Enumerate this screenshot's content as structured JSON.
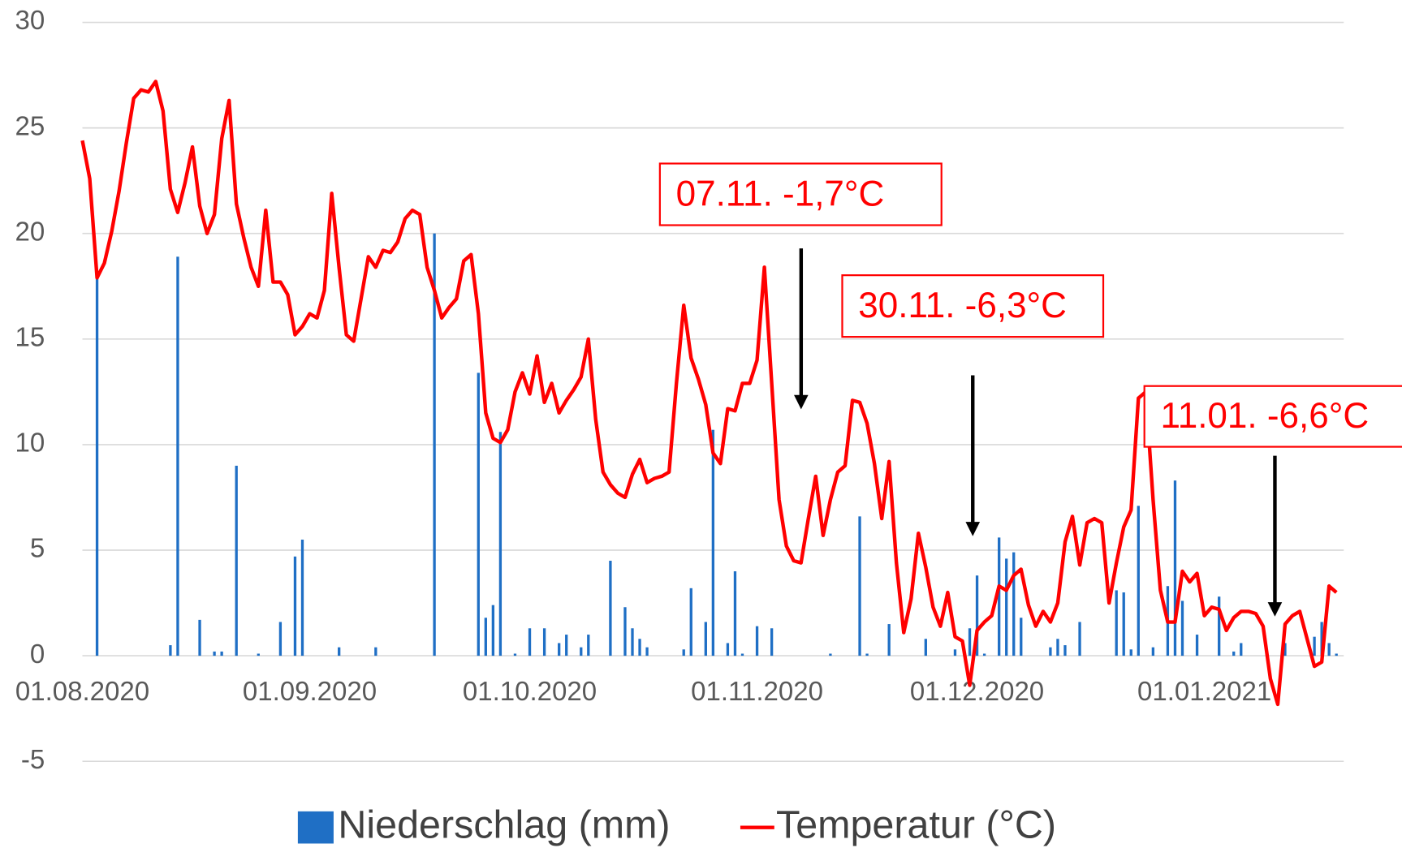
{
  "chart_data": {
    "type": "bar_line",
    "categories": [
      "01.08.2020",
      null,
      null,
      null,
      null,
      null,
      null,
      null,
      null,
      null,
      null,
      null,
      null,
      null,
      null,
      null,
      null,
      null,
      null,
      null,
      null,
      null,
      null,
      null,
      null,
      null,
      null,
      null,
      null,
      null,
      null,
      "01.09.2020",
      null,
      null,
      null,
      null,
      null,
      null,
      null,
      null,
      null,
      null,
      null,
      null,
      null,
      null,
      null,
      null,
      null,
      null,
      null,
      null,
      null,
      null,
      null,
      null,
      null,
      null,
      null,
      null,
      null,
      "01.10.2020",
      null,
      null,
      null,
      null,
      null,
      null,
      null,
      null,
      null,
      null,
      null,
      null,
      null,
      null,
      null,
      null,
      null,
      null,
      null,
      null,
      null,
      null,
      null,
      null,
      null,
      null,
      null,
      null,
      null,
      null,
      "01.11.2020",
      null,
      null,
      null,
      null,
      null,
      null,
      null,
      null,
      null,
      null,
      null,
      null,
      null,
      null,
      null,
      null,
      null,
      null,
      null,
      null,
      null,
      null,
      null,
      null,
      null,
      null,
      null,
      null,
      null,
      "01.12.2020",
      null,
      null,
      null,
      null,
      null,
      null,
      null,
      null,
      null,
      null,
      null,
      null,
      null,
      null,
      null,
      null,
      null,
      null,
      null,
      null,
      null,
      null,
      null,
      null,
      null,
      null,
      null,
      null,
      null,
      null,
      "01.01.2021",
      null,
      null,
      null,
      null,
      null,
      null,
      null,
      null,
      null,
      null,
      null,
      null,
      null,
      null,
      null,
      null,
      null,
      null
    ],
    "series": [
      {
        "name": "Niederschlag (mm)",
        "kind": "bar",
        "color": "#1f6fc5",
        "values": [
          0,
          0,
          17.9,
          0,
          0,
          0,
          0,
          0,
          0,
          0,
          0,
          0,
          0.5,
          18.9,
          0,
          0,
          1.7,
          0,
          0.2,
          0.2,
          0,
          9.0,
          0,
          0,
          0.1,
          0,
          0,
          1.6,
          0,
          4.7,
          5.5,
          0,
          0,
          0,
          0,
          0.4,
          0,
          0,
          0,
          0,
          0.4,
          0,
          0,
          0,
          0,
          0,
          0,
          0,
          20.0,
          0,
          0,
          0,
          0,
          0,
          13.4,
          1.8,
          2.4,
          10.6,
          0,
          0.1,
          0,
          1.3,
          0,
          1.3,
          0,
          0.6,
          1.0,
          0,
          0.4,
          1.0,
          0,
          0,
          4.5,
          0,
          2.3,
          1.3,
          0.8,
          0.4,
          0,
          0,
          0,
          0,
          0.3,
          3.2,
          0,
          1.6,
          10.7,
          0,
          0.6,
          4.0,
          0.1,
          0,
          1.4,
          0,
          1.3,
          0,
          0,
          0,
          0,
          0,
          0,
          0,
          0.1,
          0,
          0,
          0,
          6.6,
          0.1,
          0,
          0,
          1.5,
          0,
          0,
          0,
          0,
          0.8,
          0,
          0,
          0,
          0.3,
          0,
          1.3,
          3.8,
          0.1,
          0,
          5.6,
          4.6,
          4.9,
          1.8,
          0,
          0,
          0,
          0.4,
          0.8,
          0.5,
          0,
          1.6,
          0,
          0,
          0,
          0,
          3.1,
          3.0,
          0.3,
          7.1,
          0,
          0.4,
          0,
          3.3,
          8.3,
          2.6,
          0,
          1.0,
          0,
          0,
          2.8,
          0,
          0.2,
          0.6,
          0,
          0,
          0,
          0,
          0,
          0.6,
          0,
          0,
          0,
          0.9,
          1.6,
          0.6,
          0.1
        ]
      },
      {
        "name": "Temperatur (°C)",
        "kind": "line",
        "color": "#ff0000",
        "values": [
          24.4,
          22.6,
          17.9,
          18.6,
          20.1,
          22.0,
          24.3,
          26.4,
          26.8,
          26.7,
          27.2,
          25.8,
          22.1,
          21.0,
          22.4,
          24.1,
          21.3,
          20.0,
          20.9,
          24.5,
          26.3,
          21.4,
          19.8,
          18.4,
          17.5,
          21.1,
          17.7,
          17.7,
          17.1,
          15.2,
          15.6,
          16.2,
          16.0,
          17.3,
          21.9,
          18.4,
          15.2,
          14.9,
          16.9,
          18.9,
          18.4,
          19.2,
          19.1,
          19.6,
          20.7,
          21.1,
          20.9,
          18.4,
          17.3,
          16.0,
          16.5,
          16.9,
          18.7,
          19.0,
          16.2,
          11.5,
          10.3,
          10.1,
          10.7,
          12.5,
          13.4,
          12.4,
          14.2,
          12.0,
          12.9,
          11.5,
          12.1,
          12.6,
          13.2,
          15.0,
          11.2,
          8.7,
          8.1,
          7.7,
          7.5,
          8.6,
          9.3,
          8.2,
          8.4,
          8.5,
          8.7,
          12.9,
          16.6,
          14.1,
          13.1,
          11.9,
          9.6,
          9.1,
          11.7,
          11.6,
          12.9,
          12.9,
          14.0,
          18.4,
          12.9,
          7.4,
          5.2,
          4.5,
          4.4,
          6.5,
          8.5,
          5.7,
          7.4,
          8.7,
          9.0,
          12.1,
          12.0,
          11.0,
          9.1,
          6.5,
          9.2,
          4.4,
          1.1,
          2.7,
          5.8,
          4.2,
          2.3,
          1.4,
          3.0,
          0.9,
          0.7,
          -1.4,
          1.2,
          1.6,
          1.9,
          3.3,
          3.1,
          3.8,
          4.1,
          2.4,
          1.4,
          2.1,
          1.6,
          2.5,
          5.4,
          6.6,
          4.3,
          6.3,
          6.5,
          6.3,
          2.5,
          4.4,
          6.1,
          6.9,
          12.2,
          12.5,
          7.4,
          3.1,
          1.6,
          1.6,
          4.0,
          3.5,
          3.9,
          1.9,
          2.3,
          2.2,
          1.2,
          1.8,
          2.1,
          2.1,
          2.0,
          1.4,
          -1.1,
          -2.3,
          1.5,
          1.9,
          2.1,
          0.8,
          -0.5,
          -0.3,
          3.3,
          3.0
        ]
      }
    ],
    "ylim": [
      -5,
      30
    ],
    "yticks": [
      -5,
      0,
      5,
      10,
      15,
      20,
      25,
      30
    ],
    "grid": true,
    "legend": "bottom",
    "annotations": [
      "07.11. -1,7°C",
      "30.11. -6,3°C",
      "11.01. -6,6°C"
    ],
    "annotation_color": "#ff0000"
  }
}
